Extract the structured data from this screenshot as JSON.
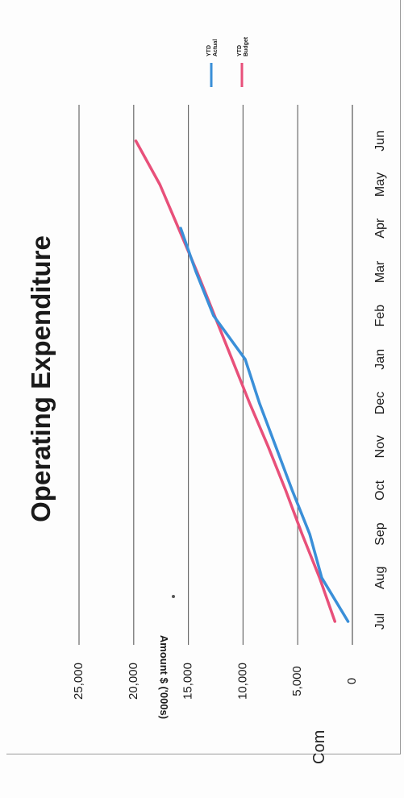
{
  "chart_data": {
    "type": "line",
    "title": "Operating Expenditure",
    "xlabel": "",
    "ylabel": "Amount $ ('000s)",
    "categories": [
      "Jul",
      "Aug",
      "Sep",
      "Oct",
      "Nov",
      "Dec",
      "Jan",
      "Feb",
      "Mar",
      "Apr",
      "May",
      "Jun"
    ],
    "y_ticks": [
      "0",
      "5,000",
      "10,000",
      "15,000",
      "20,000",
      "25,000"
    ],
    "ylim": [
      0,
      25000
    ],
    "grid": true,
    "legend_position": "top-right",
    "series": [
      {
        "name": "YTD Actual",
        "color": "#3a8fd8",
        "values": [
          400,
          2800,
          3900,
          5500,
          7000,
          8500,
          9800,
          12700,
          14300,
          15700,
          null,
          null
        ]
      },
      {
        "name": "YTD Budget",
        "color": "#e8507a",
        "values": [
          1600,
          3000,
          4600,
          6100,
          7700,
          9400,
          11000,
          12600,
          14200,
          15900,
          17600,
          19800
        ]
      }
    ]
  },
  "footer": {
    "text": "Com"
  }
}
